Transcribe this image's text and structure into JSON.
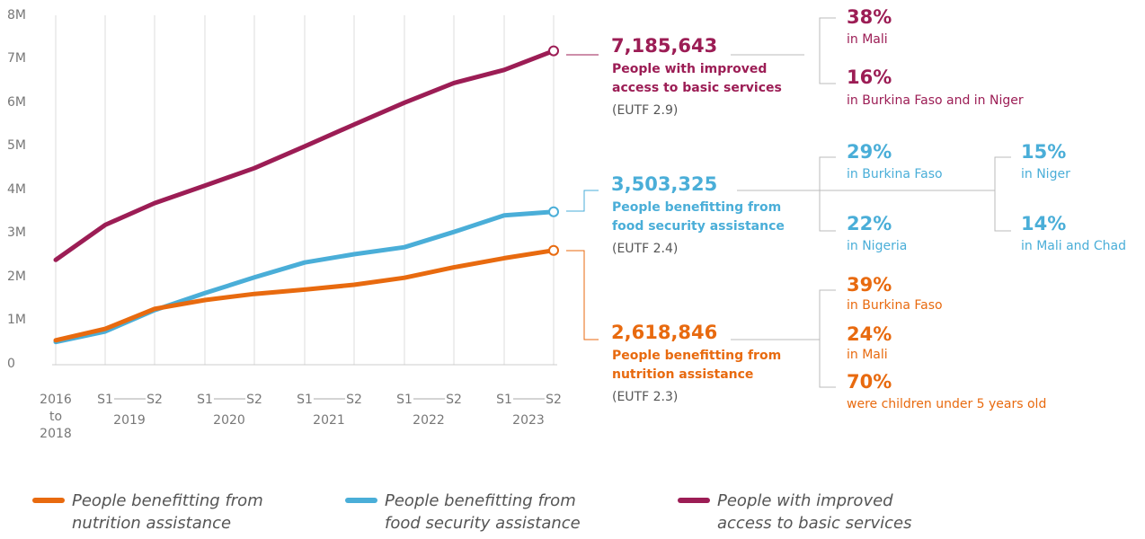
{
  "chart_data": {
    "type": "line",
    "y_ticks": [
      "0",
      "1M",
      "2M",
      "3M",
      "4M",
      "5M",
      "6M",
      "7M",
      "8M"
    ],
    "ylim": [
      0,
      8000000
    ],
    "x_labels": [
      {
        "top": "2016",
        "mid": "to",
        "bottom": "2018"
      },
      {
        "s1": "S1",
        "s2": "S2",
        "year": "2019"
      },
      {
        "s1": "S1",
        "s2": "S2",
        "year": "2020"
      },
      {
        "s1": "S1",
        "s2": "S2",
        "year": "2021"
      },
      {
        "s1": "S1",
        "s2": "S2",
        "year": "2022"
      },
      {
        "s1": "S1",
        "s2": "S2",
        "year": "2023"
      }
    ],
    "x": [
      "2016-2018",
      "S1 2019",
      "S2 2019",
      "S1 2020",
      "S2 2020",
      "S1 2021",
      "S2 2021",
      "S1 2022",
      "S2 2022",
      "S1 2023",
      "S2 2023"
    ],
    "grid": true,
    "series": [
      {
        "name": "People with improved access to basic services",
        "color": "#9c1d55",
        "values": [
          2400000,
          3200000,
          3700000,
          4100000,
          4500000,
          5000000,
          5500000,
          6000000,
          6450000,
          6750000,
          7185643
        ]
      },
      {
        "name": "People benefitting from food security assistance",
        "color": "#4aaed8",
        "values": [
          520000,
          760000,
          1250000,
          1640000,
          2000000,
          2340000,
          2530000,
          2690000,
          3040000,
          3420000,
          3503325
        ]
      },
      {
        "name": "People benefitting from nutrition assistance",
        "color": "#e86a0f",
        "values": [
          560000,
          820000,
          1280000,
          1480000,
          1620000,
          1720000,
          1830000,
          1990000,
          2230000,
          2440000,
          2618846
        ]
      }
    ]
  },
  "callouts": {
    "basic": {
      "total": "7,185,643",
      "desc": [
        "People with improved",
        "access to basic services"
      ],
      "code": "(EUTF 2.9)",
      "breakdown": [
        {
          "pct": "38%",
          "where": "in Mali"
        },
        {
          "pct": "16%",
          "where": "in Burkina Faso and in Niger"
        }
      ]
    },
    "food": {
      "total": "3,503,325",
      "desc": [
        "People benefitting from",
        "food security assistance"
      ],
      "code": "(EUTF 2.4)",
      "breakdown": [
        {
          "pct": "29%",
          "where": "in Burkina Faso"
        },
        {
          "pct": "22%",
          "where": "in Nigeria"
        },
        {
          "pct": "15%",
          "where": "in Niger"
        },
        {
          "pct": "14%",
          "where": "in Mali and Chad"
        }
      ]
    },
    "nutrition": {
      "total": "2,618,846",
      "desc": [
        "People benefitting from",
        "nutrition assistance"
      ],
      "code": "(EUTF 2.3)",
      "breakdown": [
        {
          "pct": "39%",
          "where": "in Burkina Faso"
        },
        {
          "pct": "24%",
          "where": "in Mali"
        },
        {
          "pct": "70%",
          "where": "were children under 5 years old"
        }
      ]
    }
  },
  "legend": [
    {
      "label": "People benefitting from nutrition assistance",
      "color": "#e86a0f"
    },
    {
      "label": "People benefitting from food security assistance",
      "color": "#4aaed8"
    },
    {
      "label": "People with improved access to basic services",
      "color": "#9c1d55"
    }
  ]
}
